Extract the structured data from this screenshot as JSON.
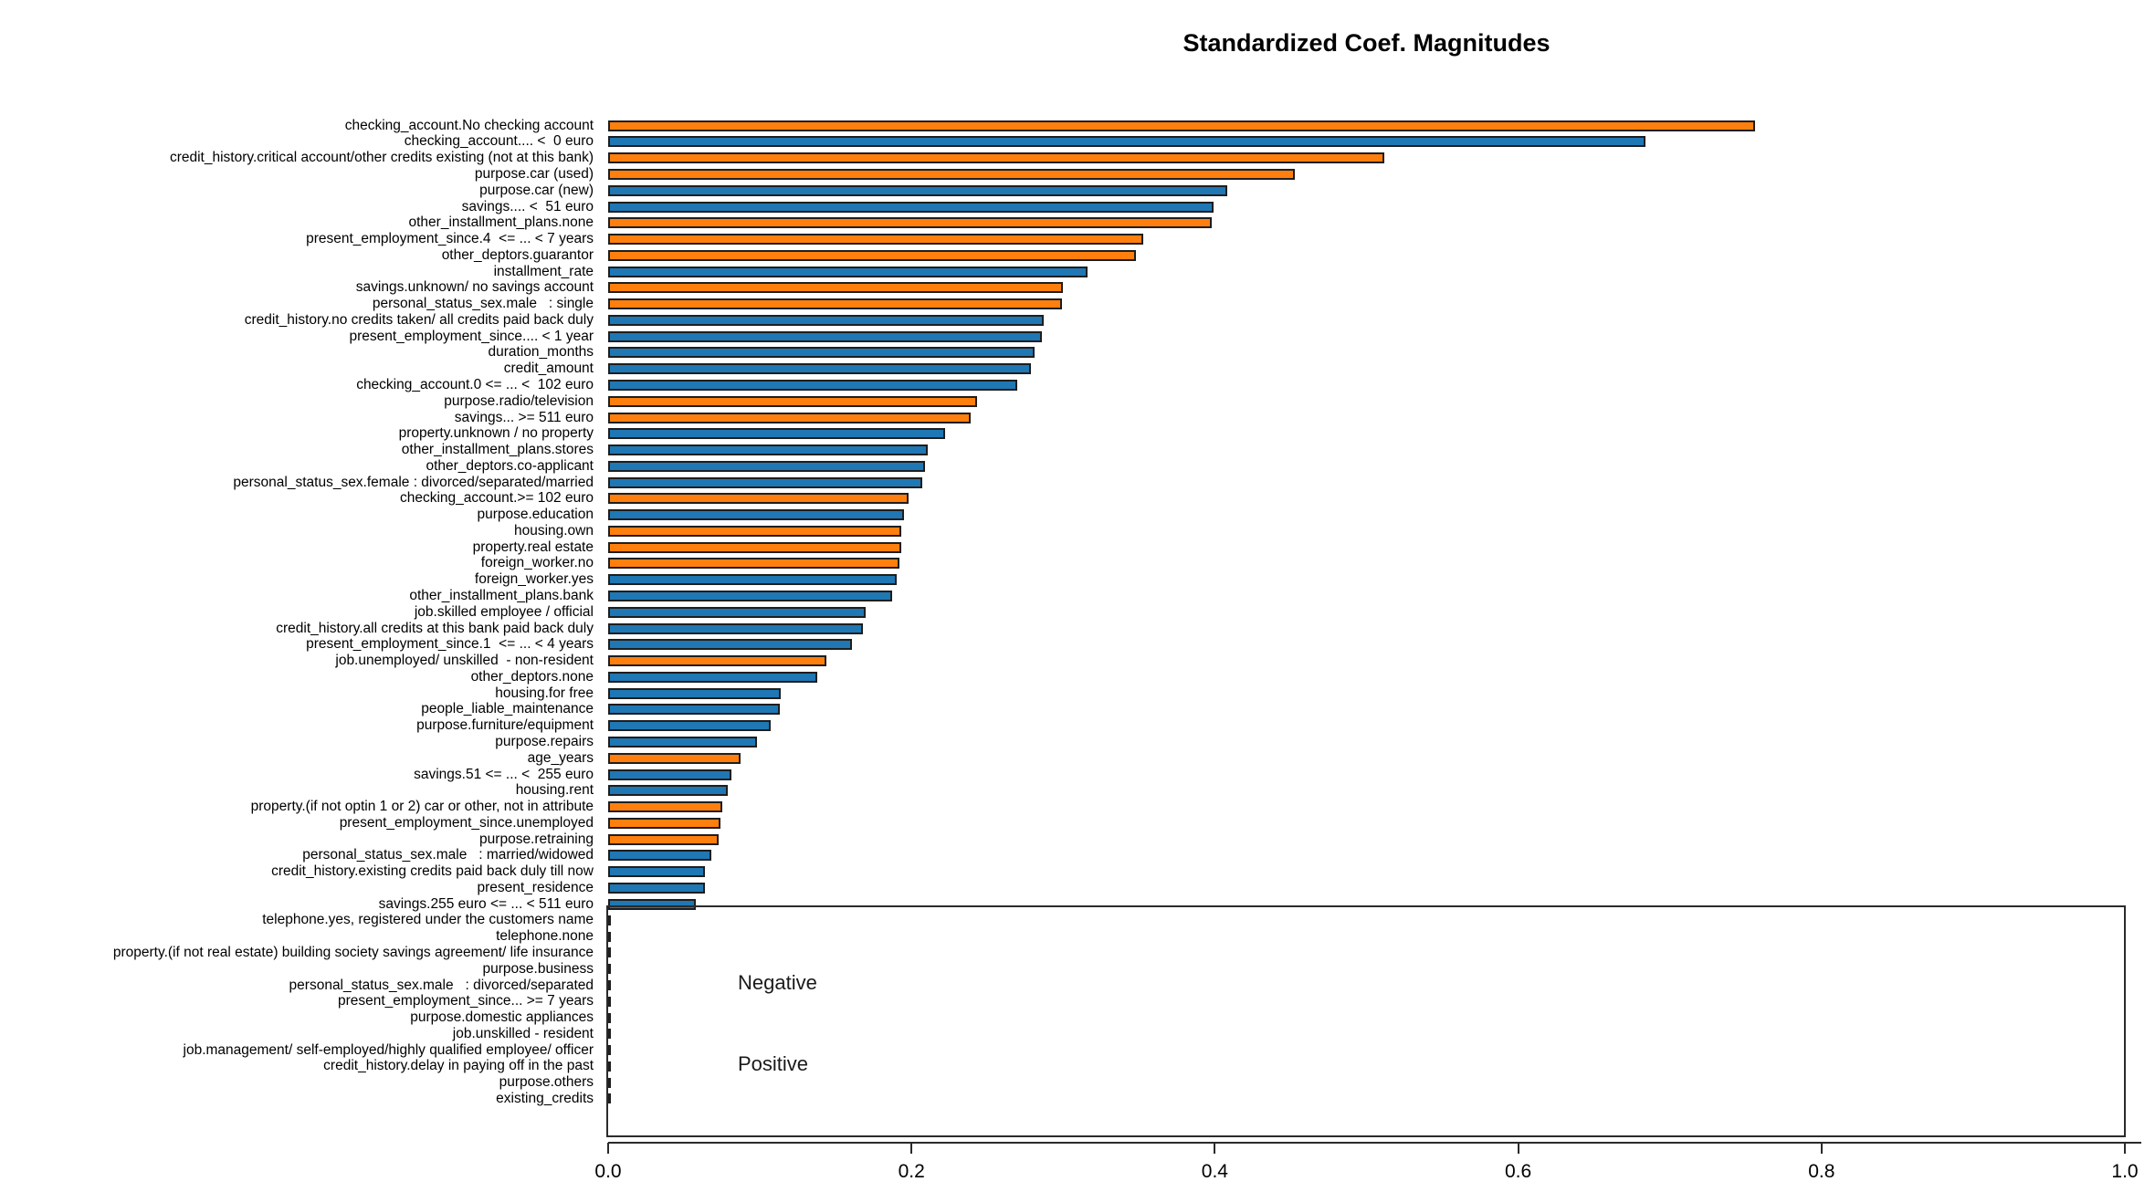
{
  "title": "Standardized Coef. Magnitudes",
  "chart_data": {
    "type": "bar",
    "orientation": "horizontal",
    "title": "Standardized Coef. Magnitudes",
    "xlabel": "",
    "ylabel": "",
    "xlim": [
      0.0,
      1.0
    ],
    "grid": false,
    "x_ticks": [
      "0.0",
      "0.2",
      "0.4",
      "0.6",
      "0.8",
      "1.0"
    ],
    "x_tick_values": [
      0.0,
      0.2,
      0.4,
      0.6,
      0.8,
      1.0
    ],
    "legend": {
      "entries": [
        "Negative",
        "Positive"
      ],
      "position": "lower-right-inside-plot",
      "frame": true
    },
    "colors": {
      "negative": "#ff7f0e",
      "positive": "#1f77b4",
      "zero": "#1e1e1e",
      "bar_edge": "#1e1e1e"
    },
    "categories": [
      "checking_account.No checking account",
      "checking_account.... <  0 euro",
      "credit_history.critical account/other credits existing (not at this bank)",
      "purpose.car (used)",
      "purpose.car (new)",
      "savings.... <  51 euro",
      "other_installment_plans.none",
      "present_employment_since.4  <= ... < 7 years",
      "other_deptors.guarantor",
      "installment_rate",
      "savings.unknown/ no savings account",
      "personal_status_sex.male   : single",
      "credit_history.no credits taken/ all credits paid back duly",
      "present_employment_since.... < 1 year",
      "duration_months",
      "credit_amount",
      "checking_account.0 <= ... <  102 euro",
      "purpose.radio/television",
      "savings... >= 511 euro",
      "property.unknown / no property",
      "other_installment_plans.stores",
      "other_deptors.co-applicant",
      "personal_status_sex.female : divorced/separated/married",
      "checking_account.>= 102 euro",
      "purpose.education",
      "housing.own",
      "property.real estate",
      "foreign_worker.no",
      "foreign_worker.yes",
      "other_installment_plans.bank",
      "job.skilled employee / official",
      "credit_history.all credits at this bank paid back duly",
      "present_employment_since.1  <= ... < 4 years",
      "job.unemployed/ unskilled  - non-resident",
      "other_deptors.none",
      "housing.for free",
      "people_liable_maintenance",
      "purpose.furniture/equipment",
      "purpose.repairs",
      "age_years",
      "savings.51 <= ... <  255 euro",
      "housing.rent",
      "property.(if not optin 1 or 2) car or other, not in attribute",
      "present_employment_since.unemployed",
      "purpose.retraining",
      "personal_status_sex.male   : married/widowed",
      "credit_history.existing credits paid back duly till now",
      "present_residence",
      "savings.255 euro <= ... < 511 euro",
      "telephone.yes, registered under the customers name",
      "telephone.none",
      "property.(if not real estate) building society savings agreement/ life insurance",
      "purpose.business",
      "personal_status_sex.male   : divorced/separated",
      "present_employment_since... >= 7 years",
      "purpose.domestic appliances",
      "job.unskilled - resident",
      "job.management/ self-employed/highly qualified employee/ officer",
      "credit_history.delay in paying off in the past",
      "purpose.others",
      "existing_credits"
    ],
    "values": [
      0.756,
      0.684,
      0.512,
      0.453,
      0.408,
      0.399,
      0.398,
      0.353,
      0.348,
      0.316,
      0.3,
      0.299,
      0.287,
      0.286,
      0.281,
      0.279,
      0.27,
      0.243,
      0.239,
      0.222,
      0.211,
      0.209,
      0.207,
      0.198,
      0.195,
      0.193,
      0.193,
      0.192,
      0.19,
      0.187,
      0.17,
      0.168,
      0.161,
      0.144,
      0.138,
      0.114,
      0.113,
      0.107,
      0.098,
      0.087,
      0.081,
      0.079,
      0.075,
      0.074,
      0.073,
      0.068,
      0.064,
      0.064,
      0.058,
      0.002,
      0.002,
      0.002,
      0.002,
      0.002,
      0.002,
      0.002,
      0.002,
      0.002,
      0.002,
      0.002,
      0.002
    ],
    "signs": [
      "negative",
      "positive",
      "negative",
      "negative",
      "positive",
      "positive",
      "negative",
      "negative",
      "negative",
      "positive",
      "negative",
      "negative",
      "positive",
      "positive",
      "positive",
      "positive",
      "positive",
      "negative",
      "negative",
      "positive",
      "positive",
      "positive",
      "positive",
      "negative",
      "positive",
      "negative",
      "negative",
      "negative",
      "positive",
      "positive",
      "positive",
      "positive",
      "positive",
      "negative",
      "positive",
      "positive",
      "positive",
      "positive",
      "positive",
      "negative",
      "positive",
      "positive",
      "negative",
      "negative",
      "negative",
      "positive",
      "positive",
      "positive",
      "positive",
      "zero",
      "zero",
      "zero",
      "zero",
      "zero",
      "zero",
      "zero",
      "zero",
      "zero",
      "zero",
      "zero",
      "zero"
    ]
  }
}
